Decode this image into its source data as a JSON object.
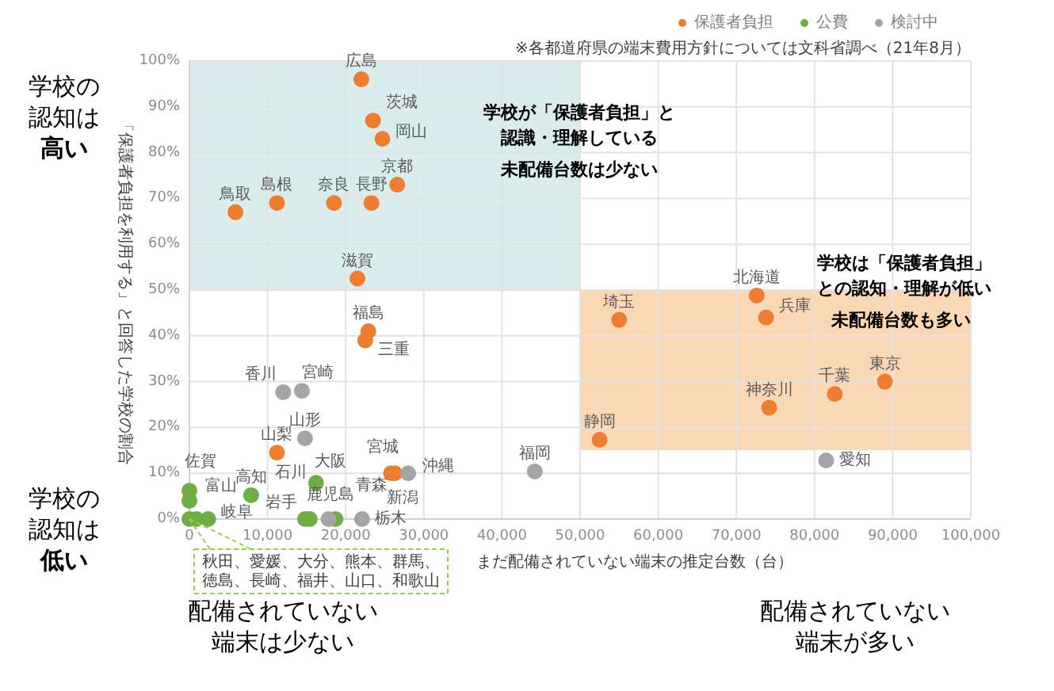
{
  "chart_data": {
    "type": "scatter",
    "xlabel": "まだ配備されていない端末の推定台数（台）",
    "ylabel": "「保護者負担を利用する」と回答した学校の割合",
    "xlim": [
      0,
      100000
    ],
    "ylim": [
      0,
      100
    ],
    "xticks": [
      {
        "value": 0,
        "label": "0"
      },
      {
        "value": 10000,
        "label": "10,000"
      },
      {
        "value": 20000,
        "label": "20,000"
      },
      {
        "value": 30000,
        "label": "30,000"
      },
      {
        "value": 40000,
        "label": "40,000"
      },
      {
        "value": 50000,
        "label": "50,000"
      },
      {
        "value": 60000,
        "label": "60,000"
      },
      {
        "value": 70000,
        "label": "70,000"
      },
      {
        "value": 80000,
        "label": "80,000"
      },
      {
        "value": 90000,
        "label": "90,000"
      },
      {
        "value": 100000,
        "label": "100,000"
      }
    ],
    "yticks": [
      {
        "value": 0,
        "label": "0%"
      },
      {
        "value": 10,
        "label": "10%"
      },
      {
        "value": 20,
        "label": "20%"
      },
      {
        "value": 30,
        "label": "30%"
      },
      {
        "value": 40,
        "label": "40%"
      },
      {
        "value": 50,
        "label": "50%"
      },
      {
        "value": 60,
        "label": "60%"
      },
      {
        "value": 70,
        "label": "70%"
      },
      {
        "value": 80,
        "label": "80%"
      },
      {
        "value": 90,
        "label": "90%"
      },
      {
        "value": 100,
        "label": "100%"
      }
    ],
    "grid": true,
    "legend": "top right",
    "marker": "circle",
    "series": [
      {
        "name": "保護者負担",
        "color": "#ed7d31",
        "x": [
          22000,
          23500,
          24700,
          26600,
          5900,
          11200,
          18500,
          23300,
          21500,
          22900,
          22500,
          11200,
          25800,
          26300,
          55000,
          72600,
          73800,
          52500,
          74200,
          82600,
          89000
        ],
        "values": [
          96,
          87,
          83,
          73,
          67,
          69,
          69,
          69,
          52.5,
          41,
          39,
          14.5,
          10,
          10,
          43.5,
          48.8,
          44,
          17.3,
          24.3,
          27.3,
          30
        ]
      },
      {
        "name": "公費",
        "color": "#70ad47",
        "x": [
          0,
          900,
          0,
          0,
          2400,
          7900,
          16200,
          14800,
          15400,
          18700
        ],
        "values": [
          0,
          0,
          6.2,
          4,
          0,
          5.2,
          7.9,
          0,
          0,
          0
        ]
      },
      {
        "name": "検討中",
        "color": "#a5a5a5",
        "x": [
          12000,
          14400,
          14800,
          28000,
          44200,
          81500,
          17800,
          22100
        ],
        "values": [
          27.7,
          28,
          17.6,
          10,
          10.4,
          12.8,
          0,
          0
        ]
      }
    ],
    "bands": [
      {
        "axis": "y",
        "from": 50,
        "to": 100,
        "color": "#daeceb",
        "label": "学校が「保護者負担」と認識・理解している"
      },
      {
        "axis": "y",
        "from": 15,
        "to": 50,
        "color": "#fbd8b5",
        "label": "学校は「保護者負担」との認知・理解が低い"
      }
    ],
    "annotations": [
      "※各都道府県の端末費用方針については文科省調べ（21年8月）",
      "学校の認知は高い",
      "学校の認知は低い",
      "配備されていない端末は少ない",
      "配備されていない端末が多い",
      "未配備台数は少ない",
      "未配備台数も多い",
      {
        "text": "広島",
        "x": 22000,
        "y": 96
      },
      {
        "text": "茨城",
        "x": 23500,
        "y": 87
      },
      {
        "text": "岡山",
        "x": 24700,
        "y": 83
      },
      {
        "text": "京都",
        "x": 26600,
        "y": 73
      },
      {
        "text": "鳥取",
        "x": 5900,
        "y": 67
      },
      {
        "text": "島根",
        "x": 11200,
        "y": 69
      },
      {
        "text": "奈良",
        "x": 18500,
        "y": 69
      },
      {
        "text": "長野",
        "x": 23300,
        "y": 69
      },
      {
        "text": "滋賀",
        "x": 21500,
        "y": 52.5
      },
      {
        "text": "福島",
        "x": 22900,
        "y": 41
      },
      {
        "text": "三重",
        "x": 22500,
        "y": 39
      },
      {
        "text": "山梨",
        "x": 11200,
        "y": 14.5
      },
      {
        "text": "宮城",
        "x": 25800,
        "y": 10
      },
      {
        "text": "新潟",
        "x": 26300,
        "y": 10
      },
      {
        "text": "埼玉",
        "x": 55000,
        "y": 43.5
      },
      {
        "text": "北海道",
        "x": 72600,
        "y": 48.8
      },
      {
        "text": "兵庫",
        "x": 73800,
        "y": 44
      },
      {
        "text": "静岡",
        "x": 52500,
        "y": 17.3
      },
      {
        "text": "神奈川",
        "x": 74200,
        "y": 24.3
      },
      {
        "text": "千葉",
        "x": 82600,
        "y": 27.3
      },
      {
        "text": "東京",
        "x": 89000,
        "y": 30
      },
      {
        "text": "香川",
        "x": 12000,
        "y": 27.7
      },
      {
        "text": "宮崎",
        "x": 14400,
        "y": 28
      },
      {
        "text": "山形",
        "x": 14800,
        "y": 17.6
      },
      {
        "text": "沖縄",
        "x": 28000,
        "y": 10
      },
      {
        "text": "福岡",
        "x": 44200,
        "y": 10.4
      },
      {
        "text": "愛知",
        "x": 81500,
        "y": 12.8
      },
      {
        "text": "鹿児島",
        "x": 17800,
        "y": 0
      },
      {
        "text": "栃木",
        "x": 22100,
        "y": 0
      },
      {
        "text": "佐賀",
        "x": 0,
        "y": 6.2
      },
      {
        "text": "富山",
        "x": 0,
        "y": 4
      },
      {
        "text": "岐阜",
        "x": 2400,
        "y": 0
      },
      {
        "text": "高知",
        "x": 7900,
        "y": 5.2
      },
      {
        "text": "大阪",
        "x": 16200,
        "y": 7.9
      },
      {
        "text": "石川",
        "x": 14800,
        "y": 0
      },
      {
        "text": "岩手",
        "x": 15400,
        "y": 0
      },
      {
        "text": "青森",
        "x": 18700,
        "y": 0
      },
      {
        "text": "秋田、愛媛、大分、熊本、群馬、徳島、長崎、福井、山口、和歌山",
        "x": 0,
        "y": 0
      }
    ]
  }
}
